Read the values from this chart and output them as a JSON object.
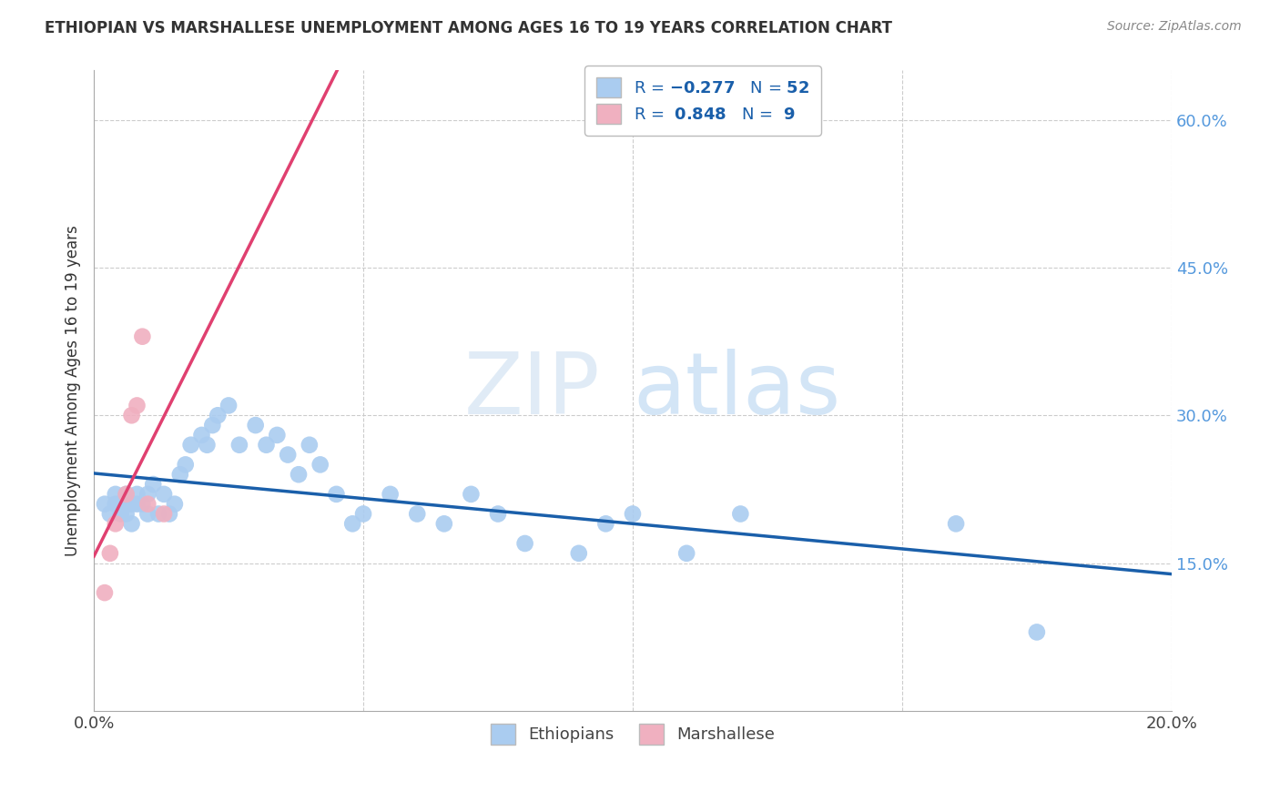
{
  "title": "ETHIOPIAN VS MARSHALLESE UNEMPLOYMENT AMONG AGES 16 TO 19 YEARS CORRELATION CHART",
  "source": "Source: ZipAtlas.com",
  "xlabel": "",
  "ylabel": "Unemployment Among Ages 16 to 19 years",
  "watermark_zip": "ZIP",
  "watermark_atlas": "atlas",
  "xlim": [
    0.0,
    0.2
  ],
  "ylim": [
    0.0,
    0.65
  ],
  "x_ticks": [
    0.0,
    0.05,
    0.1,
    0.15,
    0.2
  ],
  "x_tick_labels": [
    "0.0%",
    "",
    "",
    "",
    "20.0%"
  ],
  "y_ticks_right": [
    0.15,
    0.3,
    0.45,
    0.6
  ],
  "y_tick_labels_right": [
    "15.0%",
    "30.0%",
    "45.0%",
    "60.0%"
  ],
  "ethiopian_color": "#aaccf0",
  "marshallese_color": "#f0b0c0",
  "trend_ethiopian_color": "#1a5faa",
  "trend_marshallese_color": "#e04070",
  "trend_ext_color": "#cccccc",
  "R_ethiopian": -0.277,
  "N_ethiopian": 52,
  "R_marshallese": 0.848,
  "N_marshallese": 9,
  "ethiopian_x": [
    0.002,
    0.003,
    0.004,
    0.004,
    0.005,
    0.005,
    0.006,
    0.006,
    0.007,
    0.007,
    0.008,
    0.008,
    0.009,
    0.01,
    0.01,
    0.011,
    0.012,
    0.013,
    0.014,
    0.015,
    0.016,
    0.017,
    0.018,
    0.02,
    0.021,
    0.022,
    0.023,
    0.025,
    0.027,
    0.03,
    0.032,
    0.034,
    0.036,
    0.038,
    0.04,
    0.042,
    0.045,
    0.048,
    0.05,
    0.055,
    0.06,
    0.065,
    0.07,
    0.075,
    0.08,
    0.09,
    0.095,
    0.1,
    0.11,
    0.12,
    0.16,
    0.175
  ],
  "ethiopian_y": [
    0.21,
    0.2,
    0.21,
    0.22,
    0.2,
    0.21,
    0.2,
    0.22,
    0.19,
    0.21,
    0.21,
    0.22,
    0.21,
    0.2,
    0.22,
    0.23,
    0.2,
    0.22,
    0.2,
    0.21,
    0.24,
    0.25,
    0.27,
    0.28,
    0.27,
    0.29,
    0.3,
    0.31,
    0.27,
    0.29,
    0.27,
    0.28,
    0.26,
    0.24,
    0.27,
    0.25,
    0.22,
    0.19,
    0.2,
    0.22,
    0.2,
    0.19,
    0.22,
    0.2,
    0.17,
    0.16,
    0.19,
    0.2,
    0.16,
    0.2,
    0.19,
    0.08
  ],
  "marshallese_x": [
    0.002,
    0.003,
    0.004,
    0.006,
    0.007,
    0.008,
    0.009,
    0.01,
    0.013
  ],
  "marshallese_y": [
    0.12,
    0.16,
    0.19,
    0.22,
    0.3,
    0.31,
    0.38,
    0.21,
    0.2
  ]
}
